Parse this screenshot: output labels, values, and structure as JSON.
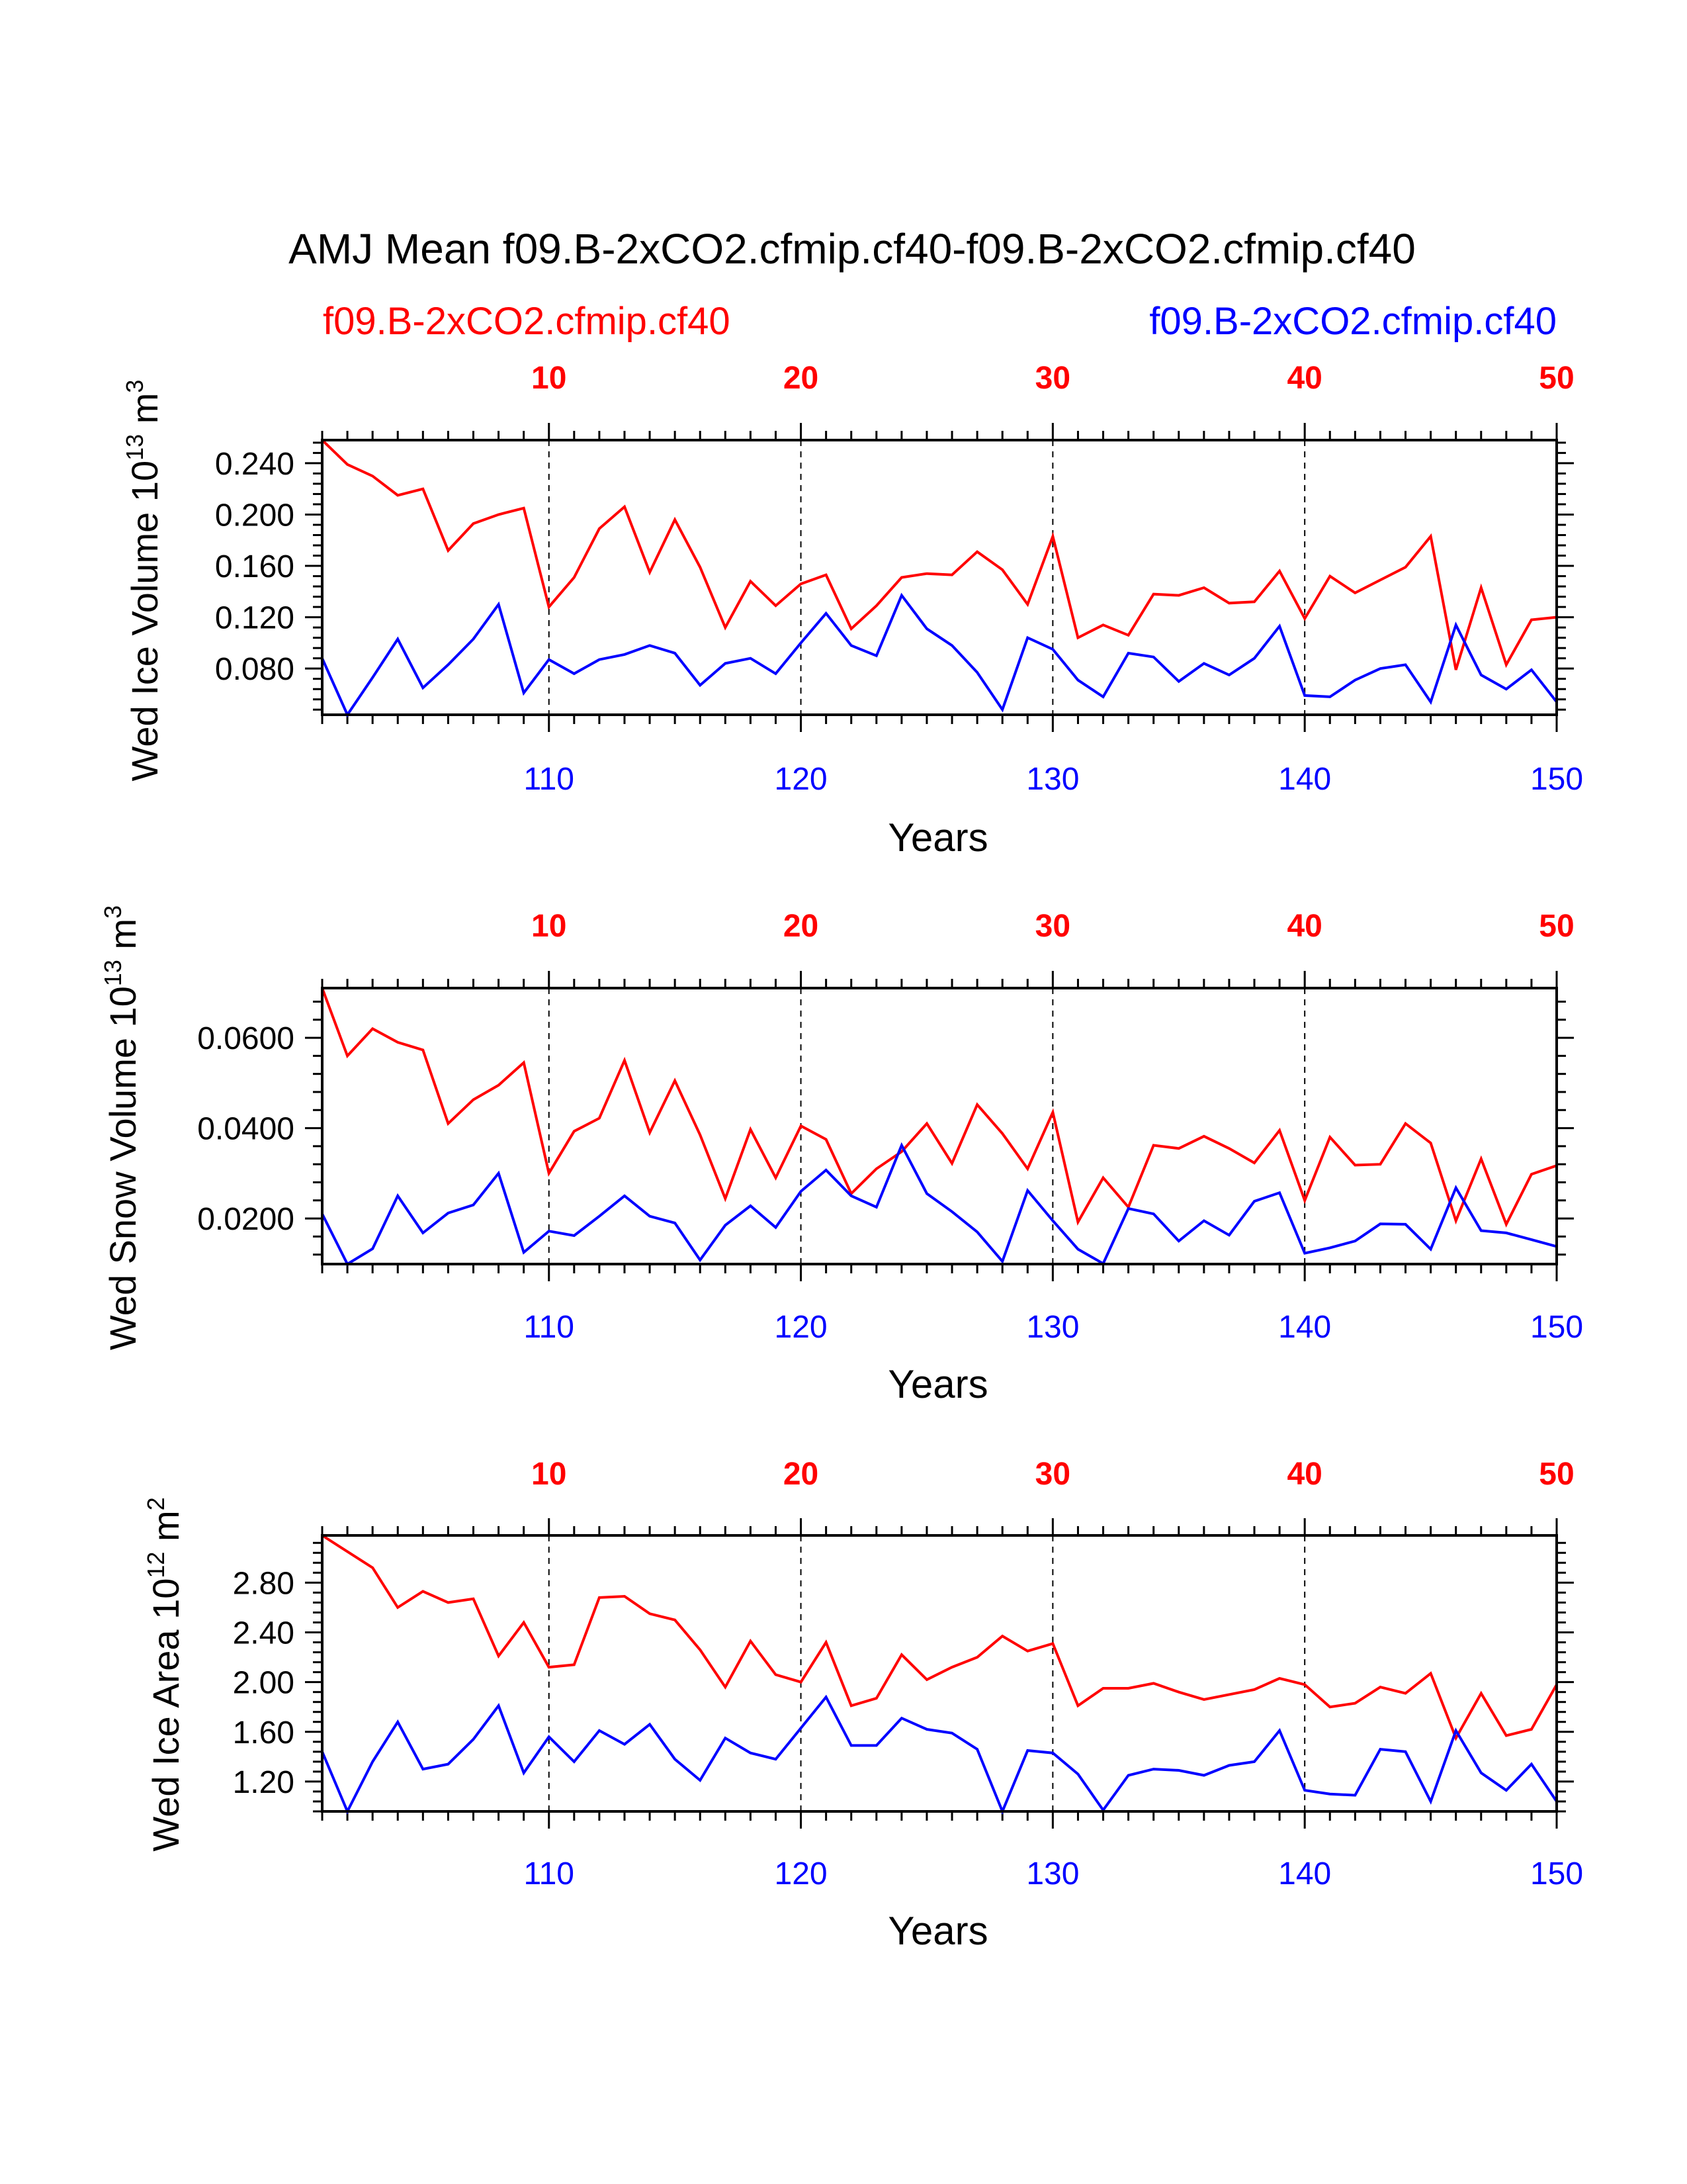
{
  "title": "AMJ Mean f09.B-2xCO2.cfmip.cf40-f09.B-2xCO2.cfmip.cf40",
  "legend": {
    "left": "f09.B-2xCO2.cfmip.cf40",
    "right": "f09.B-2xCO2.cfmip.cf40"
  },
  "colors": {
    "series1": "#ff0000",
    "series2": "#0000ff",
    "axis": "#000000"
  },
  "chart_data": [
    {
      "type": "line",
      "ylabel_main": "Wed Ice Volume 10",
      "ylabel_exp": "13",
      "ylabel_unit": " m",
      "ylabel_unit_exp": "3",
      "xlabel": "Years",
      "top_ticks": [
        "10",
        "20",
        "30",
        "40",
        "50"
      ],
      "bottom_ticks": [
        "110",
        "120",
        "130",
        "140",
        "150"
      ],
      "yticks": [
        "0.080",
        "0.120",
        "0.160",
        "0.200",
        "0.240"
      ],
      "ylim": [
        0.044,
        0.258
      ],
      "x_top_range": [
        1,
        50
      ],
      "x_bottom_range": [
        101,
        150
      ],
      "series": [
        {
          "name": "f09.B-2xCO2.cfmip.cf40",
          "axis": "top",
          "values": [
            0.258,
            0.239,
            0.23,
            0.215,
            0.22,
            0.172,
            0.193,
            0.2,
            0.205,
            0.128,
            0.151,
            0.189,
            0.206,
            0.155,
            0.196,
            0.159,
            0.112,
            0.148,
            0.129,
            0.146,
            0.153,
            0.111,
            0.129,
            0.151,
            0.154,
            0.153,
            0.171,
            0.157,
            0.13,
            0.183,
            0.104,
            0.114,
            0.106,
            0.138,
            0.137,
            0.143,
            0.131,
            0.132,
            0.156,
            0.119,
            0.152,
            0.139,
            0.149,
            0.159,
            0.183,
            0.079,
            0.143,
            0.083,
            0.118,
            0.12
          ]
        },
        {
          "name": "f09.B-2xCO2.cfmip.cf40",
          "axis": "bottom",
          "values": [
            0.088,
            0.044,
            0.073,
            0.103,
            0.065,
            0.083,
            0.103,
            0.13,
            0.061,
            0.087,
            0.076,
            0.087,
            0.091,
            0.098,
            0.092,
            0.067,
            0.084,
            0.088,
            0.076,
            0.1,
            0.123,
            0.098,
            0.09,
            0.137,
            0.111,
            0.098,
            0.077,
            0.048,
            0.104,
            0.095,
            0.071,
            0.058,
            0.092,
            0.089,
            0.07,
            0.084,
            0.075,
            0.088,
            0.113,
            0.059,
            0.058,
            0.071,
            0.08,
            0.083,
            0.054,
            0.114,
            0.075,
            0.064,
            0.079,
            0.054
          ]
        }
      ]
    },
    {
      "type": "line",
      "ylabel_main": "Wed Snow Volume 10",
      "ylabel_exp": "13",
      "ylabel_unit": " m",
      "ylabel_unit_exp": "3",
      "xlabel": "Years",
      "top_ticks": [
        "10",
        "20",
        "30",
        "40",
        "50"
      ],
      "bottom_ticks": [
        "110",
        "120",
        "130",
        "140",
        "150"
      ],
      "yticks": [
        "0.0200",
        "0.0400",
        "0.0600"
      ],
      "ylim": [
        0.0099,
        0.071
      ],
      "x_top_range": [
        1,
        50
      ],
      "x_bottom_range": [
        101,
        150
      ],
      "series": [
        {
          "name": "f09.B-2xCO2.cfmip.cf40",
          "axis": "top",
          "values": [
            0.071,
            0.056,
            0.062,
            0.059,
            0.0573,
            0.041,
            0.0463,
            0.0495,
            0.0545,
            0.03,
            0.0393,
            0.0422,
            0.055,
            0.039,
            0.0505,
            0.0385,
            0.0244,
            0.0397,
            0.029,
            0.0405,
            0.0375,
            0.0255,
            0.031,
            0.0348,
            0.041,
            0.0322,
            0.0452,
            0.0388,
            0.031,
            0.0435,
            0.0192,
            0.029,
            0.0225,
            0.0362,
            0.0355,
            0.0382,
            0.0355,
            0.0323,
            0.0395,
            0.024,
            0.038,
            0.0318,
            0.032,
            0.041,
            0.0367,
            0.0195,
            0.0332,
            0.0187,
            0.0298,
            0.0317
          ]
        },
        {
          "name": "f09.B-2xCO2.cfmip.cf40",
          "axis": "bottom",
          "values": [
            0.021,
            0.0099,
            0.0133,
            0.025,
            0.0168,
            0.0212,
            0.023,
            0.03,
            0.0125,
            0.0172,
            0.0162,
            0.0205,
            0.025,
            0.0205,
            0.019,
            0.0108,
            0.0185,
            0.0228,
            0.018,
            0.026,
            0.0307,
            0.025,
            0.0225,
            0.0362,
            0.0255,
            0.0215,
            0.017,
            0.0105,
            0.0262,
            0.0195,
            0.0132,
            0.01,
            0.0222,
            0.021,
            0.015,
            0.0195,
            0.0163,
            0.0238,
            0.0257,
            0.0123,
            0.0135,
            0.015,
            0.0188,
            0.0187,
            0.0132,
            0.0268,
            0.0173,
            0.0168,
            0.0153,
            0.0138
          ]
        }
      ]
    },
    {
      "type": "line",
      "ylabel_main": "Wed Ice Area 10",
      "ylabel_exp": "12",
      "ylabel_unit": " m",
      "ylabel_unit_exp": "2",
      "xlabel": "Years",
      "top_ticks": [
        "10",
        "20",
        "30",
        "40",
        "50"
      ],
      "bottom_ticks": [
        "110",
        "120",
        "130",
        "140",
        "150"
      ],
      "yticks": [
        "1.20",
        "1.60",
        "2.00",
        "2.40",
        "2.80"
      ],
      "ylim": [
        0.96,
        3.18
      ],
      "x_top_range": [
        1,
        50
      ],
      "x_bottom_range": [
        101,
        150
      ],
      "series": [
        {
          "name": "f09.B-2xCO2.cfmip.cf40",
          "axis": "top",
          "values": [
            3.18,
            3.05,
            2.92,
            2.6,
            2.73,
            2.64,
            2.67,
            2.21,
            2.48,
            2.12,
            2.14,
            2.68,
            2.69,
            2.55,
            2.5,
            2.26,
            1.96,
            2.33,
            2.06,
            2.0,
            2.32,
            1.81,
            1.87,
            2.22,
            2.02,
            2.12,
            2.2,
            2.37,
            2.25,
            2.31,
            1.81,
            1.95,
            1.95,
            1.99,
            1.92,
            1.86,
            1.9,
            1.94,
            2.03,
            1.98,
            1.8,
            1.83,
            1.96,
            1.91,
            2.07,
            1.55,
            1.91,
            1.57,
            1.62,
            1.98
          ]
        },
        {
          "name": "f09.B-2xCO2.cfmip.cf40",
          "axis": "bottom",
          "values": [
            1.44,
            0.96,
            1.36,
            1.68,
            1.3,
            1.34,
            1.54,
            1.81,
            1.27,
            1.56,
            1.36,
            1.61,
            1.5,
            1.66,
            1.38,
            1.21,
            1.55,
            1.43,
            1.38,
            1.63,
            1.88,
            1.49,
            1.49,
            1.71,
            1.62,
            1.59,
            1.46,
            0.96,
            1.45,
            1.43,
            1.26,
            0.97,
            1.25,
            1.3,
            1.29,
            1.25,
            1.33,
            1.36,
            1.61,
            1.13,
            1.1,
            1.09,
            1.46,
            1.44,
            1.04,
            1.61,
            1.27,
            1.13,
            1.34,
            1.04
          ]
        }
      ]
    }
  ]
}
